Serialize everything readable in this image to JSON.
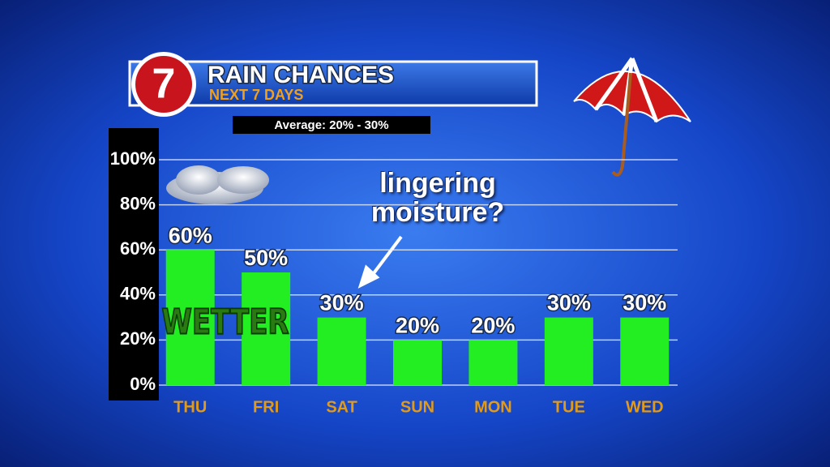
{
  "chart_data": {
    "type": "bar",
    "title": "RAIN CHANCES",
    "subtitle": "NEXT 7 DAYS",
    "logo": "7",
    "note": "Average: 20% - 30%",
    "annotations": [
      "lingering moisture?",
      "WETTER"
    ],
    "categories": [
      "THU",
      "FRI",
      "SAT",
      "SUN",
      "MON",
      "TUE",
      "WED"
    ],
    "values": [
      60,
      50,
      30,
      20,
      20,
      30,
      30
    ],
    "value_labels": [
      "60%",
      "50%",
      "30%",
      "20%",
      "20%",
      "30%",
      "30%"
    ],
    "color": "#22ee22",
    "ylim": [
      0,
      100
    ],
    "yticks": [
      {
        "value": 0,
        "label": "0%"
      },
      {
        "value": 20,
        "label": "20%"
      },
      {
        "value": 40,
        "label": "40%"
      },
      {
        "value": 60,
        "label": "60%"
      },
      {
        "value": 80,
        "label": "80%"
      },
      {
        "value": 100,
        "label": "100%"
      }
    ],
    "grid": true
  }
}
